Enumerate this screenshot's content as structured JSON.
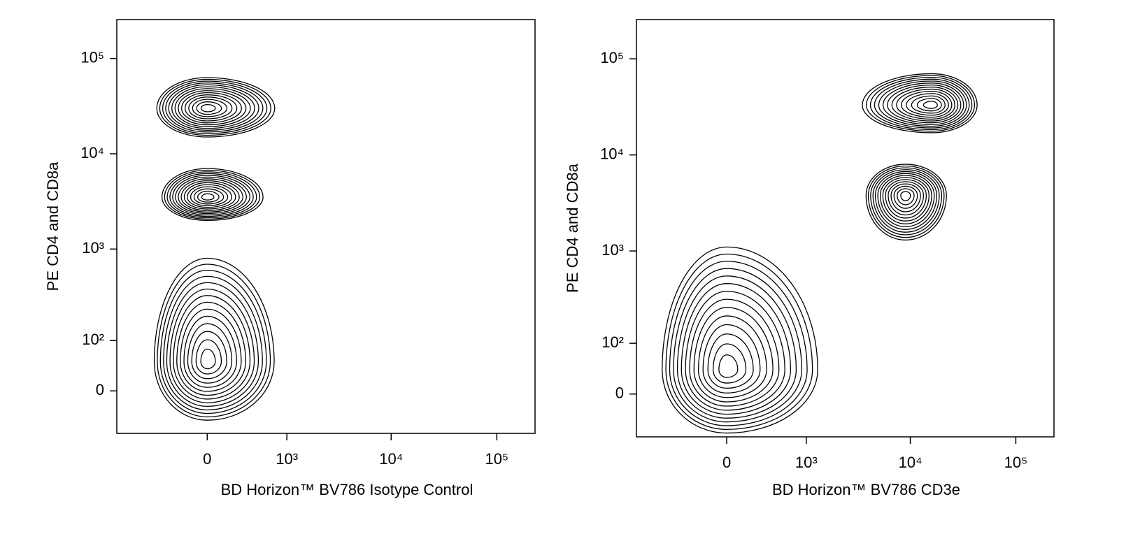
{
  "chart_data": [
    {
      "type": "contour",
      "x_label": "BD Horizon™ BV786 Isotype Control",
      "y_label": "PE CD4 and CD8a",
      "xlim": [
        -1280,
        230000
      ],
      "ylim": [
        -79,
        256000
      ],
      "xticks": [
        0,
        {
          "value": 1000,
          "label": "10³"
        },
        {
          "value": 10000,
          "label": "10⁴"
        },
        {
          "value": 100000,
          "label": "10⁵"
        }
      ],
      "yticks": [
        0,
        {
          "value": 100,
          "label": "10²"
        },
        {
          "value": 1000,
          "label": "10³"
        },
        {
          "value": 10000,
          "label": "10⁴"
        },
        {
          "value": 100000,
          "label": "10⁵"
        }
      ],
      "populations": [
        {
          "x": 0,
          "y": 30000,
          "xlo": -485,
          "xhi": 750,
          "ylo": 15000,
          "yhi": 63000
        },
        {
          "x": 0,
          "y": 3500,
          "xlo": -420,
          "xhi": 560,
          "ylo": 2000,
          "yhi": 7000
        },
        {
          "x": 0,
          "y": 50,
          "xlo": -520,
          "xhi": 740,
          "ylo": -50,
          "yhi": 800
        }
      ]
    },
    {
      "type": "contour",
      "x_label": "BD Horizon™ BV786 CD3e",
      "y_label": "PE CD4 and CD8a",
      "xlim": [
        -1280,
        230000
      ],
      "ylim": [
        -79,
        256000
      ],
      "xticks": [
        0,
        {
          "value": 1000,
          "label": "10³"
        },
        {
          "value": 10000,
          "label": "10⁴"
        },
        {
          "value": 100000,
          "label": "10⁵"
        }
      ],
      "yticks": [
        0,
        {
          "value": 100,
          "label": "10²"
        },
        {
          "value": 1000,
          "label": "10³"
        },
        {
          "value": 10000,
          "label": "10⁴"
        },
        {
          "value": 100000,
          "label": "10⁵"
        }
      ],
      "populations": [
        {
          "x": 16000,
          "y": 33000,
          "xlo": 3500,
          "xhi": 43000,
          "ylo": 17000,
          "yhi": 70000
        },
        {
          "x": 9000,
          "y": 3800,
          "xlo": 3800,
          "xhi": 22000,
          "ylo": 1300,
          "yhi": 8000
        },
        {
          "x": 0,
          "y": 40,
          "xlo": -700,
          "xhi": 1300,
          "ylo": -70,
          "yhi": 1100
        }
      ]
    }
  ]
}
